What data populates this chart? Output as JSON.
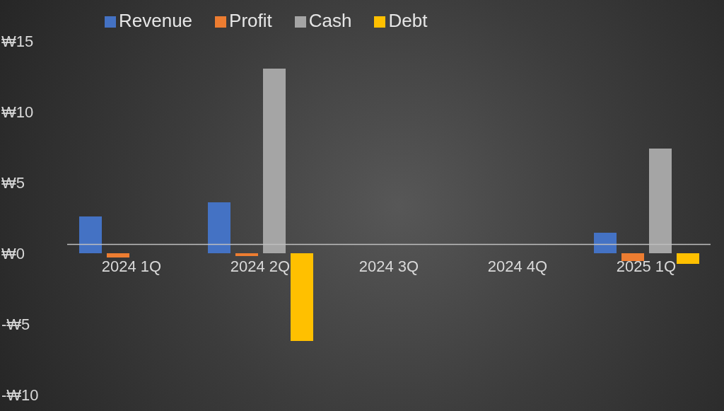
{
  "chart_data": {
    "type": "bar",
    "categories": [
      "2024 1Q",
      "2024 2Q",
      "2024 3Q",
      "2024 4Q",
      "2025 1Q"
    ],
    "series": [
      {
        "name": "Revenue",
        "color": "#4472c4",
        "values": [
          2.6,
          3.6,
          null,
          null,
          1.45
        ]
      },
      {
        "name": "Profit",
        "color": "#ed7d31",
        "values": [
          -0.3,
          -0.2,
          null,
          null,
          -0.55
        ]
      },
      {
        "name": "Cash",
        "color": "#a5a5a5",
        "values": [
          null,
          13.05,
          null,
          null,
          7.4
        ]
      },
      {
        "name": "Debt",
        "color": "#ffc000",
        "values": [
          null,
          -6.2,
          null,
          null,
          -0.75
        ]
      }
    ],
    "ylim": [
      -10,
      15
    ],
    "yticks": [
      {
        "value": -10,
        "label": "-₩10"
      },
      {
        "value": -5,
        "label": "-₩5"
      },
      {
        "value": 0,
        "label": "₩0"
      },
      {
        "value": 5,
        "label": "₩5"
      },
      {
        "value": 10,
        "label": "₩10"
      },
      {
        "value": 15,
        "label": "₩15"
      }
    ],
    "grid": false,
    "legend": "top"
  }
}
